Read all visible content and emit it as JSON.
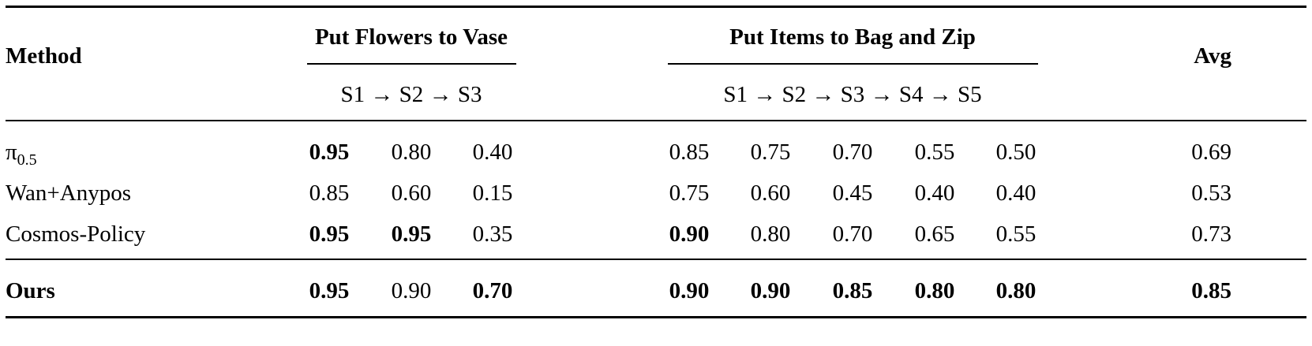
{
  "table": {
    "header": {
      "method": "Method",
      "avg": "Avg",
      "groups": [
        {
          "title": "Put Flowers to Vase",
          "stages": [
            "S1",
            "→",
            "S2",
            "→",
            "S3"
          ]
        },
        {
          "title": "Put Items to Bag and Zip",
          "stages": [
            "S1",
            "→",
            "S2",
            "→",
            "S3",
            "→",
            "S4",
            "→",
            "S5"
          ]
        }
      ]
    },
    "rows": [
      {
        "method": "π",
        "method_sub": "0.5",
        "values": [
          "0.95",
          "0.80",
          "0.40",
          "0.85",
          "0.75",
          "0.70",
          "0.55",
          "0.50"
        ],
        "bold": [
          true,
          false,
          false,
          false,
          false,
          false,
          false,
          false
        ],
        "avg": "0.69",
        "avg_bold": false,
        "method_bold": false
      },
      {
        "method": "Wan+Anypos",
        "method_sub": "",
        "values": [
          "0.85",
          "0.60",
          "0.15",
          "0.75",
          "0.60",
          "0.45",
          "0.40",
          "0.40"
        ],
        "bold": [
          false,
          false,
          false,
          false,
          false,
          false,
          false,
          false
        ],
        "avg": "0.53",
        "avg_bold": false,
        "method_bold": false
      },
      {
        "method": "Cosmos-Policy",
        "method_sub": "",
        "values": [
          "0.95",
          "0.95",
          "0.35",
          "0.90",
          "0.80",
          "0.70",
          "0.65",
          "0.55"
        ],
        "bold": [
          true,
          true,
          false,
          true,
          false,
          false,
          false,
          false
        ],
        "avg": "0.73",
        "avg_bold": false,
        "method_bold": false
      },
      {
        "method": "Ours",
        "method_sub": "",
        "values": [
          "0.95",
          "0.90",
          "0.70",
          "0.90",
          "0.90",
          "0.85",
          "0.80",
          "0.80"
        ],
        "bold": [
          true,
          false,
          true,
          true,
          true,
          true,
          true,
          true
        ],
        "avg": "0.85",
        "avg_bold": true,
        "method_bold": true
      }
    ]
  }
}
